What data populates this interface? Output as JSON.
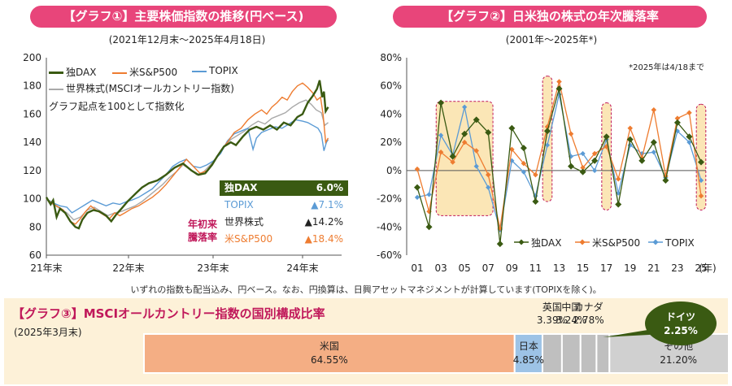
{
  "chart_data": [
    {
      "type": "line",
      "title": "【グラフ①】主要株価指数の推移(円ベース)",
      "subtitle": "(2021年12月末～2025年4月18日)",
      "note": "グラフ起点を100として指数化",
      "ylim": [
        60,
        200
      ],
      "yticks": [
        "60",
        "80",
        "100",
        "120",
        "140",
        "160",
        "180",
        "200"
      ],
      "xticks": [
        "21年末",
        "22年末",
        "23年末",
        "24年末"
      ],
      "series": [
        {
          "name": "独DAX",
          "color": "#3a5a12",
          "points": [
            [
              0,
              101
            ],
            [
              0.05,
              96
            ],
            [
              0.08,
              99
            ],
            [
              0.12,
              87
            ],
            [
              0.16,
              93
            ],
            [
              0.22,
              90
            ],
            [
              0.28,
              84
            ],
            [
              0.34,
              80
            ],
            [
              0.38,
              79
            ],
            [
              0.42,
              85
            ],
            [
              0.48,
              90
            ],
            [
              0.55,
              92
            ],
            [
              0.62,
              91
            ],
            [
              0.7,
              88
            ],
            [
              0.76,
              84
            ],
            [
              0.82,
              89
            ],
            [
              0.88,
              93
            ],
            [
              0.95,
              98
            ],
            [
              1.0,
              101
            ],
            [
              1.05,
              104
            ],
            [
              1.12,
              108
            ],
            [
              1.2,
              111
            ],
            [
              1.3,
              113
            ],
            [
              1.4,
              117
            ],
            [
              1.5,
              122
            ],
            [
              1.6,
              125
            ],
            [
              1.7,
              120
            ],
            [
              1.78,
              117
            ],
            [
              1.86,
              118
            ],
            [
              1.94,
              124
            ],
            [
              2.0,
              130
            ],
            [
              2.08,
              137
            ],
            [
              2.16,
              140
            ],
            [
              2.22,
              138
            ],
            [
              2.3,
              144
            ],
            [
              2.38,
              149
            ],
            [
              2.46,
              151
            ],
            [
              2.54,
              149
            ],
            [
              2.62,
              152
            ],
            [
              2.7,
              149
            ],
            [
              2.78,
              154
            ],
            [
              2.86,
              152
            ],
            [
              2.94,
              158
            ],
            [
              3.0,
              160
            ],
            [
              3.06,
              168
            ],
            [
              3.12,
              173
            ],
            [
              3.17,
              178
            ],
            [
              3.2,
              184
            ],
            [
              3.23,
              172
            ],
            [
              3.25,
              176
            ],
            [
              3.27,
              162
            ],
            [
              3.3,
              165
            ]
          ]
        },
        {
          "name": "米S&P500",
          "color": "#ee7c30",
          "points": [
            [
              0,
              100
            ],
            [
              0.06,
              97
            ],
            [
              0.12,
              95
            ],
            [
              0.2,
              92
            ],
            [
              0.28,
              84
            ],
            [
              0.34,
              82
            ],
            [
              0.4,
              86
            ],
            [
              0.46,
              91
            ],
            [
              0.52,
              95
            ],
            [
              0.58,
              92
            ],
            [
              0.66,
              89
            ],
            [
              0.74,
              86
            ],
            [
              0.8,
              90
            ],
            [
              0.86,
              88
            ],
            [
              0.92,
              90
            ],
            [
              1.0,
              93
            ],
            [
              1.08,
              95
            ],
            [
              1.16,
              98
            ],
            [
              1.24,
              101
            ],
            [
              1.32,
              105
            ],
            [
              1.4,
              110
            ],
            [
              1.48,
              116
            ],
            [
              1.56,
              122
            ],
            [
              1.64,
              128
            ],
            [
              1.72,
              123
            ],
            [
              1.8,
              118
            ],
            [
              1.88,
              120
            ],
            [
              1.96,
              126
            ],
            [
              2.04,
              134
            ],
            [
              2.12,
              140
            ],
            [
              2.2,
              147
            ],
            [
              2.28,
              150
            ],
            [
              2.36,
              156
            ],
            [
              2.44,
              160
            ],
            [
              2.52,
              163
            ],
            [
              2.58,
              160
            ],
            [
              2.64,
              165
            ],
            [
              2.7,
              168
            ],
            [
              2.76,
              172
            ],
            [
              2.82,
              170
            ],
            [
              2.88,
              176
            ],
            [
              2.94,
              180
            ],
            [
              3.0,
              182
            ],
            [
              3.06,
              179
            ],
            [
              3.12,
              175
            ],
            [
              3.17,
              170
            ],
            [
              3.21,
              172
            ],
            [
              3.24,
              160
            ],
            [
              3.27,
              140
            ],
            [
              3.3,
              143
            ]
          ]
        },
        {
          "name": "TOPIX",
          "color": "#5b9bd5",
          "points": [
            [
              0,
              100
            ],
            [
              0.08,
              97
            ],
            [
              0.16,
              95
            ],
            [
              0.24,
              94
            ],
            [
              0.3,
              90
            ],
            [
              0.38,
              93
            ],
            [
              0.46,
              96
            ],
            [
              0.54,
              99
            ],
            [
              0.62,
              97
            ],
            [
              0.7,
              95
            ],
            [
              0.78,
              97
            ],
            [
              0.86,
              96
            ],
            [
              0.94,
              98
            ],
            [
              1.0,
              99
            ],
            [
              1.08,
              101
            ],
            [
              1.16,
              104
            ],
            [
              1.24,
              107
            ],
            [
              1.32,
              112
            ],
            [
              1.4,
              117
            ],
            [
              1.48,
              123
            ],
            [
              1.56,
              126
            ],
            [
              1.64,
              128
            ],
            [
              1.72,
              123
            ],
            [
              1.8,
              122
            ],
            [
              1.88,
              124
            ],
            [
              1.96,
              127
            ],
            [
              2.04,
              132
            ],
            [
              2.12,
              141
            ],
            [
              2.2,
              146
            ],
            [
              2.28,
              148
            ],
            [
              2.36,
              150
            ],
            [
              2.42,
              135
            ],
            [
              2.46,
              143
            ],
            [
              2.52,
              147
            ],
            [
              2.6,
              149
            ],
            [
              2.68,
              151
            ],
            [
              2.76,
              150
            ],
            [
              2.84,
              153
            ],
            [
              2.92,
              156
            ],
            [
              3.0,
              155
            ],
            [
              3.06,
              154
            ],
            [
              3.12,
              152
            ],
            [
              3.18,
              150
            ],
            [
              3.22,
              146
            ],
            [
              3.25,
              134
            ],
            [
              3.28,
              140
            ],
            [
              3.3,
              142
            ]
          ]
        },
        {
          "name": "世界株式(MSCIオールカントリー指数)",
          "color": "#a9a9a9",
          "points": [
            [
              0,
              100
            ],
            [
              0.08,
              96
            ],
            [
              0.16,
              93
            ],
            [
              0.24,
              90
            ],
            [
              0.32,
              85
            ],
            [
              0.4,
              87
            ],
            [
              0.48,
              92
            ],
            [
              0.56,
              94
            ],
            [
              0.64,
              91
            ],
            [
              0.72,
              88
            ],
            [
              0.8,
              90
            ],
            [
              0.88,
              91
            ],
            [
              0.96,
              93
            ],
            [
              1.04,
              95
            ],
            [
              1.12,
              98
            ],
            [
              1.2,
              102
            ],
            [
              1.28,
              106
            ],
            [
              1.36,
              110
            ],
            [
              1.44,
              115
            ],
            [
              1.52,
              119
            ],
            [
              1.6,
              124
            ],
            [
              1.68,
              121
            ],
            [
              1.76,
              117
            ],
            [
              1.84,
              119
            ],
            [
              1.92,
              124
            ],
            [
              2.0,
              130
            ],
            [
              2.08,
              137
            ],
            [
              2.16,
              142
            ],
            [
              2.24,
              145
            ],
            [
              2.32,
              148
            ],
            [
              2.4,
              152
            ],
            [
              2.48,
              155
            ],
            [
              2.56,
              153
            ],
            [
              2.64,
              157
            ],
            [
              2.72,
              159
            ],
            [
              2.8,
              161
            ],
            [
              2.88,
              165
            ],
            [
              2.96,
              168
            ],
            [
              3.04,
              170
            ],
            [
              3.1,
              167
            ],
            [
              3.16,
              163
            ],
            [
              3.22,
              161
            ],
            [
              3.26,
              152
            ],
            [
              3.3,
              154
            ]
          ]
        }
      ],
      "ytd_box": {
        "title": "年初来\n騰落率",
        "rows": [
          {
            "name": "独DAX",
            "value": "6.0%",
            "bg": "#3a5a12",
            "fg": "#ffffff"
          },
          {
            "name": "TOPIX",
            "value": "▲7.1%",
            "bg": "#ffffff",
            "fg": "#5b9bd5"
          },
          {
            "name": "世界株式",
            "value": "▲14.2%",
            "bg": "#ffffff",
            "fg": "#222222"
          },
          {
            "name": "米S&P500",
            "value": "▲18.4%",
            "bg": "#ffffff",
            "fg": "#ee7c30"
          }
        ]
      }
    },
    {
      "type": "line",
      "title": "【グラフ②】日米独の株式の年次騰落率",
      "subtitle": "(2001年～2025年*)",
      "note": "*2025年は4/18まで",
      "ylim": [
        -60,
        80
      ],
      "yticks": [
        "-60%",
        "-40%",
        "-20%",
        "0%",
        "20%",
        "40%",
        "60%",
        "80%"
      ],
      "xticks": [
        "01",
        "03",
        "05",
        "07",
        "09",
        "11",
        "13",
        "15",
        "17",
        "19",
        "21",
        "23",
        "25"
      ],
      "x_unit": "(年)",
      "x": [
        1,
        2,
        3,
        4,
        5,
        6,
        7,
        8,
        9,
        10,
        11,
        12,
        13,
        14,
        15,
        16,
        17,
        18,
        19,
        20,
        21,
        22,
        23,
        24,
        25
      ],
      "series": [
        {
          "name": "独DAX",
          "color": "#3a5a12",
          "values": [
            -12,
            -40,
            48,
            10,
            26,
            36,
            27,
            -52,
            30,
            16,
            -22,
            28,
            58,
            3,
            -1,
            7,
            24,
            -24,
            22,
            7,
            20,
            -7,
            34,
            24,
            6
          ]
        },
        {
          "name": "米S&P500",
          "color": "#ee7c30",
          "values": [
            1,
            -29,
            13,
            6,
            20,
            14,
            -3,
            -41,
            15,
            5,
            -3,
            31,
            63,
            26,
            2,
            12,
            17,
            -6,
            30,
            9,
            43,
            -4,
            37,
            41,
            -18
          ]
        },
        {
          "name": "TOPIX",
          "color": "#5b9bd5",
          "values": [
            -19,
            -17,
            25,
            11,
            45,
            3,
            -12,
            -42,
            7,
            -1,
            -18,
            18,
            54,
            10,
            12,
            0,
            22,
            -16,
            18,
            12,
            13,
            -5,
            28,
            20,
            -7
          ]
        }
      ]
    }
  ],
  "footnote": "いずれの指数も配当込み、円ベース。なお、円換算は、日興アセットマネジメントが計算しています(TOPIXを除く)。",
  "graph3": {
    "title": "【グラフ③】MSCIオールカントリー指数の国別構成比率",
    "subtitle": "(2025年3月末)",
    "segments": [
      {
        "label": "米国",
        "value": "64.55%",
        "pct": 64.55,
        "color": "#f4ae84"
      },
      {
        "label": "日本",
        "value": "4.85%",
        "pct": 4.85,
        "color": "#9dc3e6"
      },
      {
        "label": "英国",
        "value": "3.39%",
        "pct": 3.39,
        "color": "#bfbfbf"
      },
      {
        "label": "中国",
        "value": "3.24%",
        "pct": 3.24,
        "color": "#bfbfbf"
      },
      {
        "label": "カナダ",
        "value": "2.78%",
        "pct": 2.78,
        "color": "#bfbfbf"
      },
      {
        "label": "ドイツ",
        "value": "2.25%",
        "pct": 2.25,
        "color": "#3a5a12"
      },
      {
        "label": "その他",
        "value": "21.20%",
        "pct": 21.2,
        "color": "#d0d0d0"
      }
    ]
  }
}
